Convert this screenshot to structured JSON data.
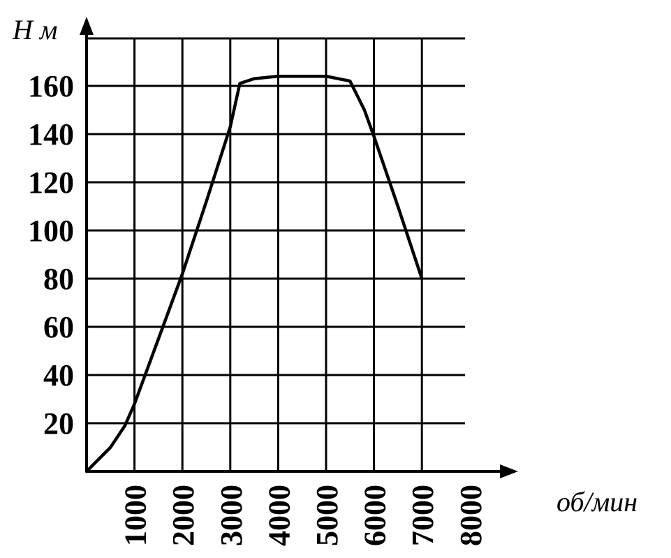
{
  "chart_data": {
    "type": "line",
    "ylabel": "Н м",
    "xlabel": "об/мин",
    "xlim": [
      0,
      8000
    ],
    "ylim": [
      0,
      160
    ],
    "x_ticks": [
      "1000",
      "2000",
      "3000",
      "4000",
      "5000",
      "6000",
      "7000",
      "8000"
    ],
    "y_ticks": [
      "20",
      "40",
      "60",
      "80",
      "100",
      "120",
      "140",
      "160"
    ],
    "grid": true,
    "series": [
      {
        "x": [
          0,
          500,
          800,
          1000,
          1500,
          2000,
          2500,
          3000,
          3200,
          3500,
          4000,
          4500,
          5000,
          5500,
          5800,
          6000,
          6500,
          7000
        ],
        "y": [
          0,
          10,
          19,
          28,
          55,
          82,
          112,
          143,
          161,
          163,
          164,
          164,
          164,
          162,
          150,
          139,
          110,
          80
        ]
      }
    ]
  }
}
